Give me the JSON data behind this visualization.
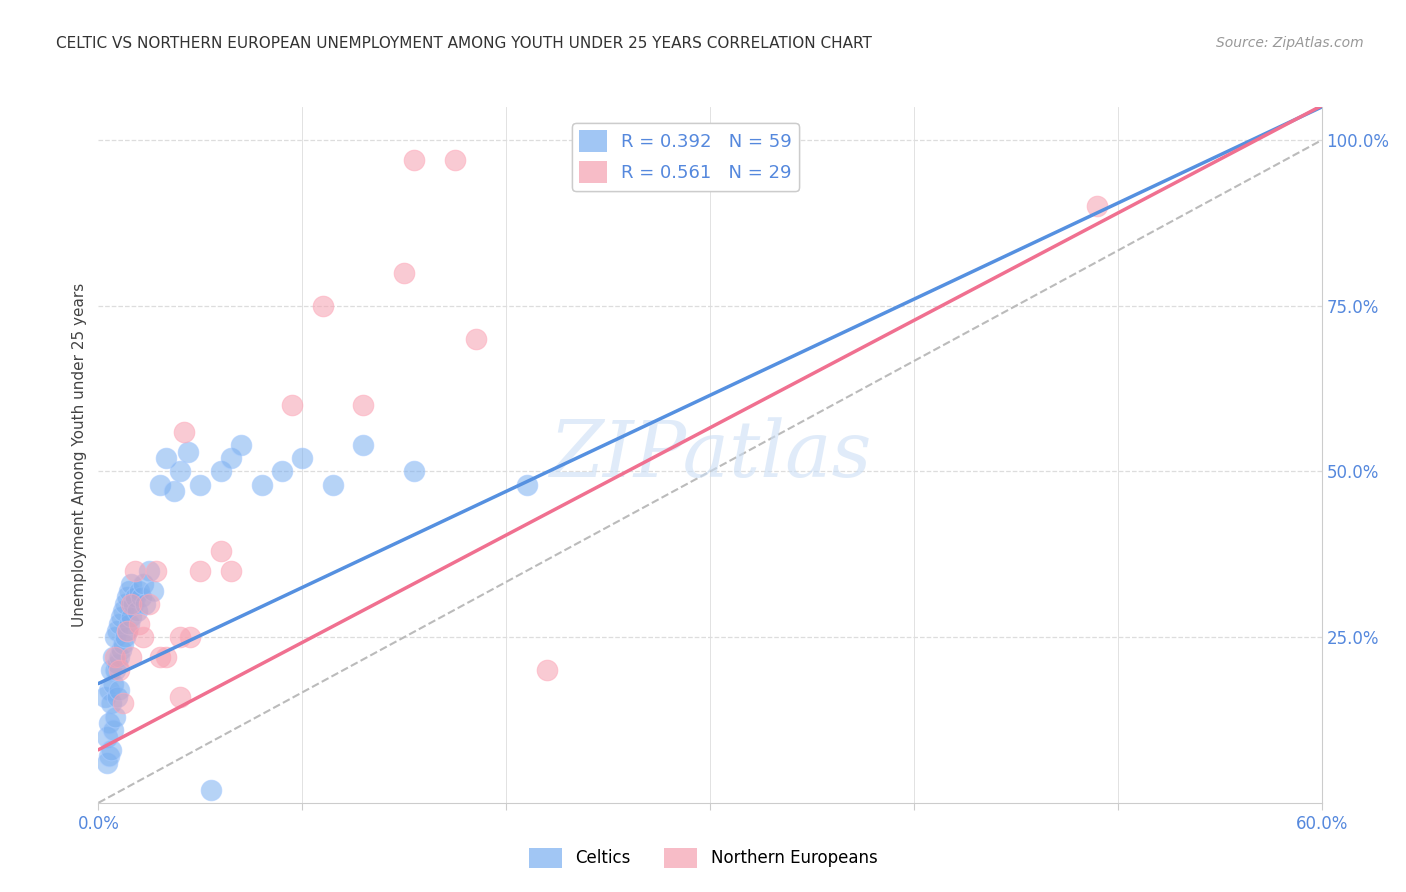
{
  "title": "CELTIC VS NORTHERN EUROPEAN UNEMPLOYMENT AMONG YOUTH UNDER 25 YEARS CORRELATION CHART",
  "source": "Source: ZipAtlas.com",
  "ylabel": "Unemployment Among Youth under 25 years",
  "xlim": [
    0.0,
    0.6
  ],
  "ylim": [
    0.0,
    1.05
  ],
  "xticks": [
    0.0,
    0.1,
    0.2,
    0.3,
    0.4,
    0.5,
    0.6
  ],
  "xticklabels": [
    "0.0%",
    "",
    "",
    "",
    "",
    "",
    "60.0%"
  ],
  "yticks_right": [
    0.25,
    0.5,
    0.75,
    1.0
  ],
  "yticklabels_right": [
    "25.0%",
    "50.0%",
    "75.0%",
    "100.0%"
  ],
  "legend_r1": "R = 0.392",
  "legend_n1": "N = 59",
  "legend_r2": "R = 0.561",
  "legend_n2": "N = 29",
  "celtics_color": "#7aaff0",
  "northern_color": "#f5a0b0",
  "celtics_line_color": "#5590e0",
  "northern_line_color": "#f07090",
  "ref_line_color": "#bbbbbb",
  "celtics_x": [
    0.003,
    0.004,
    0.004,
    0.005,
    0.005,
    0.005,
    0.006,
    0.006,
    0.006,
    0.007,
    0.007,
    0.007,
    0.008,
    0.008,
    0.008,
    0.009,
    0.009,
    0.009,
    0.01,
    0.01,
    0.01,
    0.011,
    0.011,
    0.012,
    0.012,
    0.013,
    0.013,
    0.014,
    0.014,
    0.015,
    0.015,
    0.016,
    0.016,
    0.017,
    0.018,
    0.019,
    0.02,
    0.021,
    0.022,
    0.023,
    0.025,
    0.027,
    0.03,
    0.033,
    0.037,
    0.04,
    0.044,
    0.05,
    0.055,
    0.06,
    0.065,
    0.07,
    0.08,
    0.09,
    0.1,
    0.115,
    0.13,
    0.155,
    0.21
  ],
  "celtics_y": [
    0.16,
    0.1,
    0.06,
    0.17,
    0.12,
    0.07,
    0.2,
    0.15,
    0.08,
    0.22,
    0.18,
    0.11,
    0.25,
    0.2,
    0.13,
    0.26,
    0.21,
    0.16,
    0.27,
    0.22,
    0.17,
    0.28,
    0.23,
    0.29,
    0.24,
    0.3,
    0.25,
    0.31,
    0.26,
    0.32,
    0.27,
    0.33,
    0.28,
    0.3,
    0.31,
    0.29,
    0.32,
    0.31,
    0.33,
    0.3,
    0.35,
    0.32,
    0.48,
    0.52,
    0.47,
    0.5,
    0.53,
    0.48,
    0.02,
    0.5,
    0.52,
    0.54,
    0.48,
    0.5,
    0.52,
    0.48,
    0.54,
    0.5,
    0.48
  ],
  "northern_x": [
    0.008,
    0.01,
    0.012,
    0.014,
    0.016,
    0.016,
    0.018,
    0.02,
    0.022,
    0.025,
    0.028,
    0.03,
    0.033,
    0.04,
    0.042,
    0.045,
    0.05,
    0.06,
    0.065,
    0.095,
    0.11,
    0.13,
    0.15,
    0.155,
    0.175,
    0.185,
    0.22,
    0.49,
    0.04
  ],
  "northern_y": [
    0.22,
    0.2,
    0.15,
    0.26,
    0.22,
    0.3,
    0.35,
    0.27,
    0.25,
    0.3,
    0.35,
    0.22,
    0.22,
    0.25,
    0.56,
    0.25,
    0.35,
    0.38,
    0.35,
    0.6,
    0.75,
    0.6,
    0.8,
    0.97,
    0.97,
    0.7,
    0.2,
    0.9,
    0.16
  ],
  "background_color": "#ffffff",
  "grid_color": "#dddddd",
  "celtics_reg_m": 1.45,
  "celtics_reg_b": 0.18,
  "northern_reg_m": 1.62,
  "northern_reg_b": 0.08
}
